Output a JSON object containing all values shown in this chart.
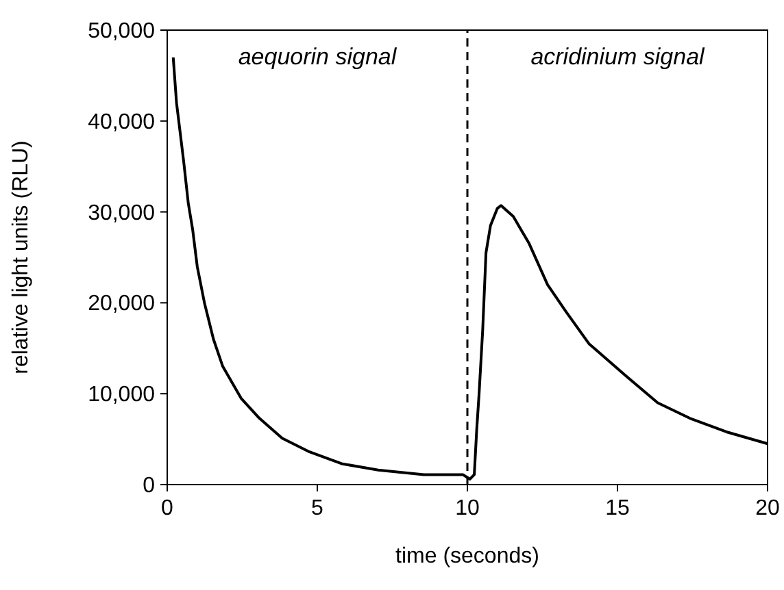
{
  "chart_data": {
    "type": "line",
    "xlabel": "time (seconds)",
    "ylabel": "relative light units (RLU)",
    "xlim": [
      0,
      20
    ],
    "xticks": [
      0,
      5,
      10,
      15,
      20
    ],
    "ylim": [
      0,
      50000
    ],
    "yticks": [
      {
        "value": 0,
        "label": "0"
      },
      {
        "value": 10000,
        "label": "10,000"
      },
      {
        "value": 20000,
        "label": "20,000"
      },
      {
        "value": 30000,
        "label": "30,000"
      },
      {
        "value": 40000,
        "label": "40,000"
      },
      {
        "value": 50000,
        "label": "50,000"
      }
    ],
    "marker": "none",
    "line_style": "solid",
    "ref_lines": [
      {
        "axis": "x",
        "value": 10,
        "line_style": "dashed",
        "color": "#000000"
      }
    ],
    "annotations": [
      "aequorin signal",
      "acridinium signal"
    ],
    "series": [
      {
        "color": "#000000",
        "x": [
          0.2,
          0.31,
          0.44,
          0.55,
          0.7,
          0.85,
          1.0,
          1.24,
          1.54,
          1.85,
          2.46,
          3.07,
          3.83,
          4.74,
          5.81,
          7.03,
          8.55,
          9.85,
          10.08,
          10.23,
          10.31,
          10.39,
          10.51,
          10.62,
          10.77,
          11.0,
          11.12,
          11.53,
          12.06,
          12.67,
          13.29,
          14.05,
          15.27,
          16.34,
          17.41,
          18.63,
          20.0
        ],
        "values": [
          47000,
          42000,
          38500,
          35500,
          31000,
          28000,
          24000,
          20000,
          16000,
          13000,
          9500,
          7300,
          5100,
          3600,
          2300,
          1600,
          1100,
          1100,
          600,
          1100,
          6000,
          10000,
          17000,
          25500,
          28500,
          30400,
          30700,
          29500,
          26500,
          22000,
          19000,
          15500,
          12000,
          9000,
          7300,
          5800,
          4500
        ]
      }
    ]
  }
}
